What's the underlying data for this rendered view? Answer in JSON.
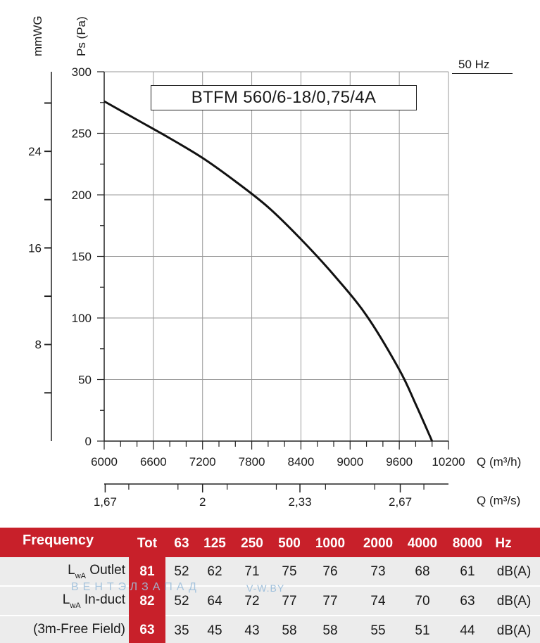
{
  "chart_data": {
    "type": "line",
    "title": "BTFM 560/6-18/0,75/4A",
    "frequency_note": "50 Hz",
    "x_label": "Q (m³/h)",
    "x_ticks": [
      "6000",
      "6600",
      "7200",
      "7800",
      "8400",
      "9000",
      "9600",
      "10200"
    ],
    "xlim": [
      6000,
      10200
    ],
    "x2_label": "Q (m³/s)",
    "x2_ticks": [
      {
        "label": "1,67",
        "value": 1.67
      },
      {
        "label": "2",
        "value": 2.0
      },
      {
        "label": "2,33",
        "value": 2.33
      },
      {
        "label": "2,67",
        "value": 2.67
      }
    ],
    "y_label": "Ps (Pa)",
    "y_ticks": [
      "0",
      "50",
      "100",
      "150",
      "200",
      "250",
      "300"
    ],
    "ylim": [
      0,
      300
    ],
    "y2_label": "mmWG",
    "y2_ticks": [
      "8",
      "16",
      "24"
    ],
    "grid": true,
    "series": [
      {
        "x": [
          6000,
          6400,
          6800,
          7200,
          7600,
          8000,
          8400,
          8800,
          9200,
          9600,
          9800,
          10000
        ],
        "y": [
          276,
          261,
          246,
          230,
          211,
          190,
          164,
          135,
          102,
          58,
          30,
          0
        ]
      }
    ]
  },
  "table": {
    "header": {
      "frequency": "Frequency",
      "tot": "Tot",
      "bands": [
        "63",
        "125",
        "250",
        "500",
        "1000",
        "2000",
        "4000",
        "8000"
      ],
      "unit": "Hz"
    },
    "rows": [
      {
        "prefix": "L",
        "sub": "wA",
        "name": "Outlet",
        "tot": "81",
        "values": [
          "52",
          "62",
          "71",
          "75",
          "76",
          "73",
          "68",
          "61"
        ],
        "unit": "dB(A)"
      },
      {
        "prefix": "L",
        "sub": "wA",
        "name": "In-duct",
        "tot": "82",
        "values": [
          "52",
          "64",
          "72",
          "77",
          "77",
          "74",
          "70",
          "63"
        ],
        "unit": "dB(A)"
      },
      {
        "prefix": "",
        "sub": "",
        "name": "(3m-Free Field)",
        "tot": "63",
        "values": [
          "35",
          "45",
          "43",
          "58",
          "58",
          "55",
          "51",
          "44"
        ],
        "unit": "dB(A)"
      }
    ]
  },
  "watermark": {
    "text": "ВЕНТЭЛЗАПАД",
    "site": "V-W.BY"
  }
}
